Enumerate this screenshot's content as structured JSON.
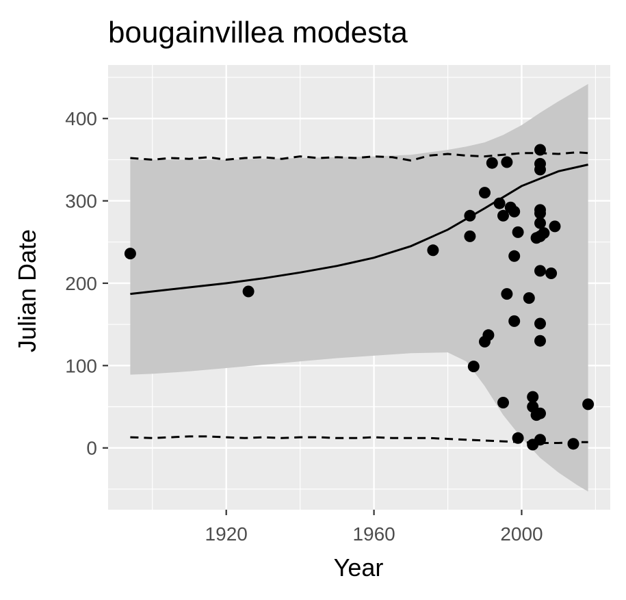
{
  "chart_data": {
    "type": "scatter",
    "title": "bougainvillea modesta",
    "xlabel": "Year",
    "ylabel": "Julian Date",
    "xlim": [
      1888,
      2024
    ],
    "ylim": [
      -75,
      465
    ],
    "x_ticks": [
      1920,
      1960,
      2000
    ],
    "x_tick_labels": [
      "1920",
      "1960",
      "2000"
    ],
    "y_ticks": [
      0,
      100,
      200,
      300,
      400
    ],
    "y_tick_labels": [
      "0",
      "100",
      "200",
      "300",
      "400"
    ],
    "grid": true,
    "legend": "none",
    "colors": {
      "panel": "#ebebeb",
      "grid": "#ffffff",
      "ribbon": "#c8c8c8",
      "line": "#000000",
      "points": "#000000",
      "tick": "#333333"
    },
    "points": [
      [
        1894,
        236
      ],
      [
        1926,
        190
      ],
      [
        1976,
        240
      ],
      [
        1986,
        282
      ],
      [
        1986,
        257
      ],
      [
        1987,
        99
      ],
      [
        1990,
        310
      ],
      [
        1990,
        129
      ],
      [
        1991,
        137
      ],
      [
        1992,
        346
      ],
      [
        1994,
        297
      ],
      [
        1995,
        282
      ],
      [
        1995,
        55
      ],
      [
        1996,
        347
      ],
      [
        1996,
        187
      ],
      [
        1997,
        292
      ],
      [
        1998,
        287
      ],
      [
        1998,
        233
      ],
      [
        1998,
        154
      ],
      [
        1999,
        262
      ],
      [
        1999,
        12
      ],
      [
        2002,
        182
      ],
      [
        2003,
        62
      ],
      [
        2003,
        50
      ],
      [
        2003,
        4
      ],
      [
        2004,
        255
      ],
      [
        2004,
        40
      ],
      [
        2005,
        362
      ],
      [
        2005,
        345
      ],
      [
        2005,
        338
      ],
      [
        2005,
        289
      ],
      [
        2005,
        285
      ],
      [
        2005,
        273
      ],
      [
        2005,
        257
      ],
      [
        2005,
        215
      ],
      [
        2005,
        151
      ],
      [
        2005,
        130
      ],
      [
        2005,
        42
      ],
      [
        2005,
        10
      ],
      [
        2006,
        261
      ],
      [
        2008,
        212
      ],
      [
        2009,
        269
      ],
      [
        2014,
        5
      ],
      [
        2018,
        53
      ]
    ],
    "trend_line": {
      "x": [
        1894,
        1900,
        1910,
        1920,
        1930,
        1940,
        1950,
        1960,
        1970,
        1980,
        1990,
        2000,
        2010,
        2018
      ],
      "y": [
        187,
        190,
        195,
        200,
        206,
        213,
        221,
        231,
        245,
        265,
        291,
        318,
        336,
        344
      ]
    },
    "confidence_band": {
      "x": [
        1894,
        1900,
        1910,
        1920,
        1930,
        1940,
        1950,
        1960,
        1970,
        1980,
        1985,
        1990,
        1995,
        2000,
        2005,
        2010,
        2015,
        2018
      ],
      "lower": [
        89,
        90,
        93,
        97,
        101,
        105,
        109,
        112,
        115,
        116,
        105,
        75,
        40,
        12,
        -12,
        -30,
        -45,
        -53
      ],
      "upper": [
        350,
        350,
        350,
        350,
        351,
        352,
        353,
        354,
        356,
        362,
        366,
        371,
        380,
        392,
        407,
        421,
        434,
        442
      ]
    },
    "upper_dashed": {
      "x": [
        1894,
        1900,
        1905,
        1910,
        1915,
        1920,
        1925,
        1930,
        1935,
        1940,
        1945,
        1950,
        1955,
        1960,
        1965,
        1970,
        1975,
        1980,
        1985,
        1990,
        1995,
        2000,
        2005,
        2010,
        2015,
        2018
      ],
      "y": [
        352,
        350,
        352,
        351,
        353,
        350,
        352,
        353,
        351,
        354,
        352,
        353,
        352,
        354,
        353,
        349,
        355,
        357,
        355,
        354,
        356,
        358,
        358,
        357,
        359,
        358
      ]
    },
    "lower_dashed": {
      "x": [
        1894,
        1900,
        1905,
        1910,
        1915,
        1920,
        1925,
        1930,
        1935,
        1940,
        1945,
        1950,
        1955,
        1960,
        1965,
        1970,
        1975,
        1980,
        1985,
        1990,
        1995,
        2000,
        2005,
        2010,
        2015,
        2018
      ],
      "y": [
        13,
        12,
        13,
        14,
        14,
        13,
        12,
        13,
        12,
        13,
        13,
        12,
        12,
        13,
        12,
        12,
        12,
        11,
        10,
        9,
        8,
        7,
        6,
        6,
        7,
        7
      ]
    }
  }
}
